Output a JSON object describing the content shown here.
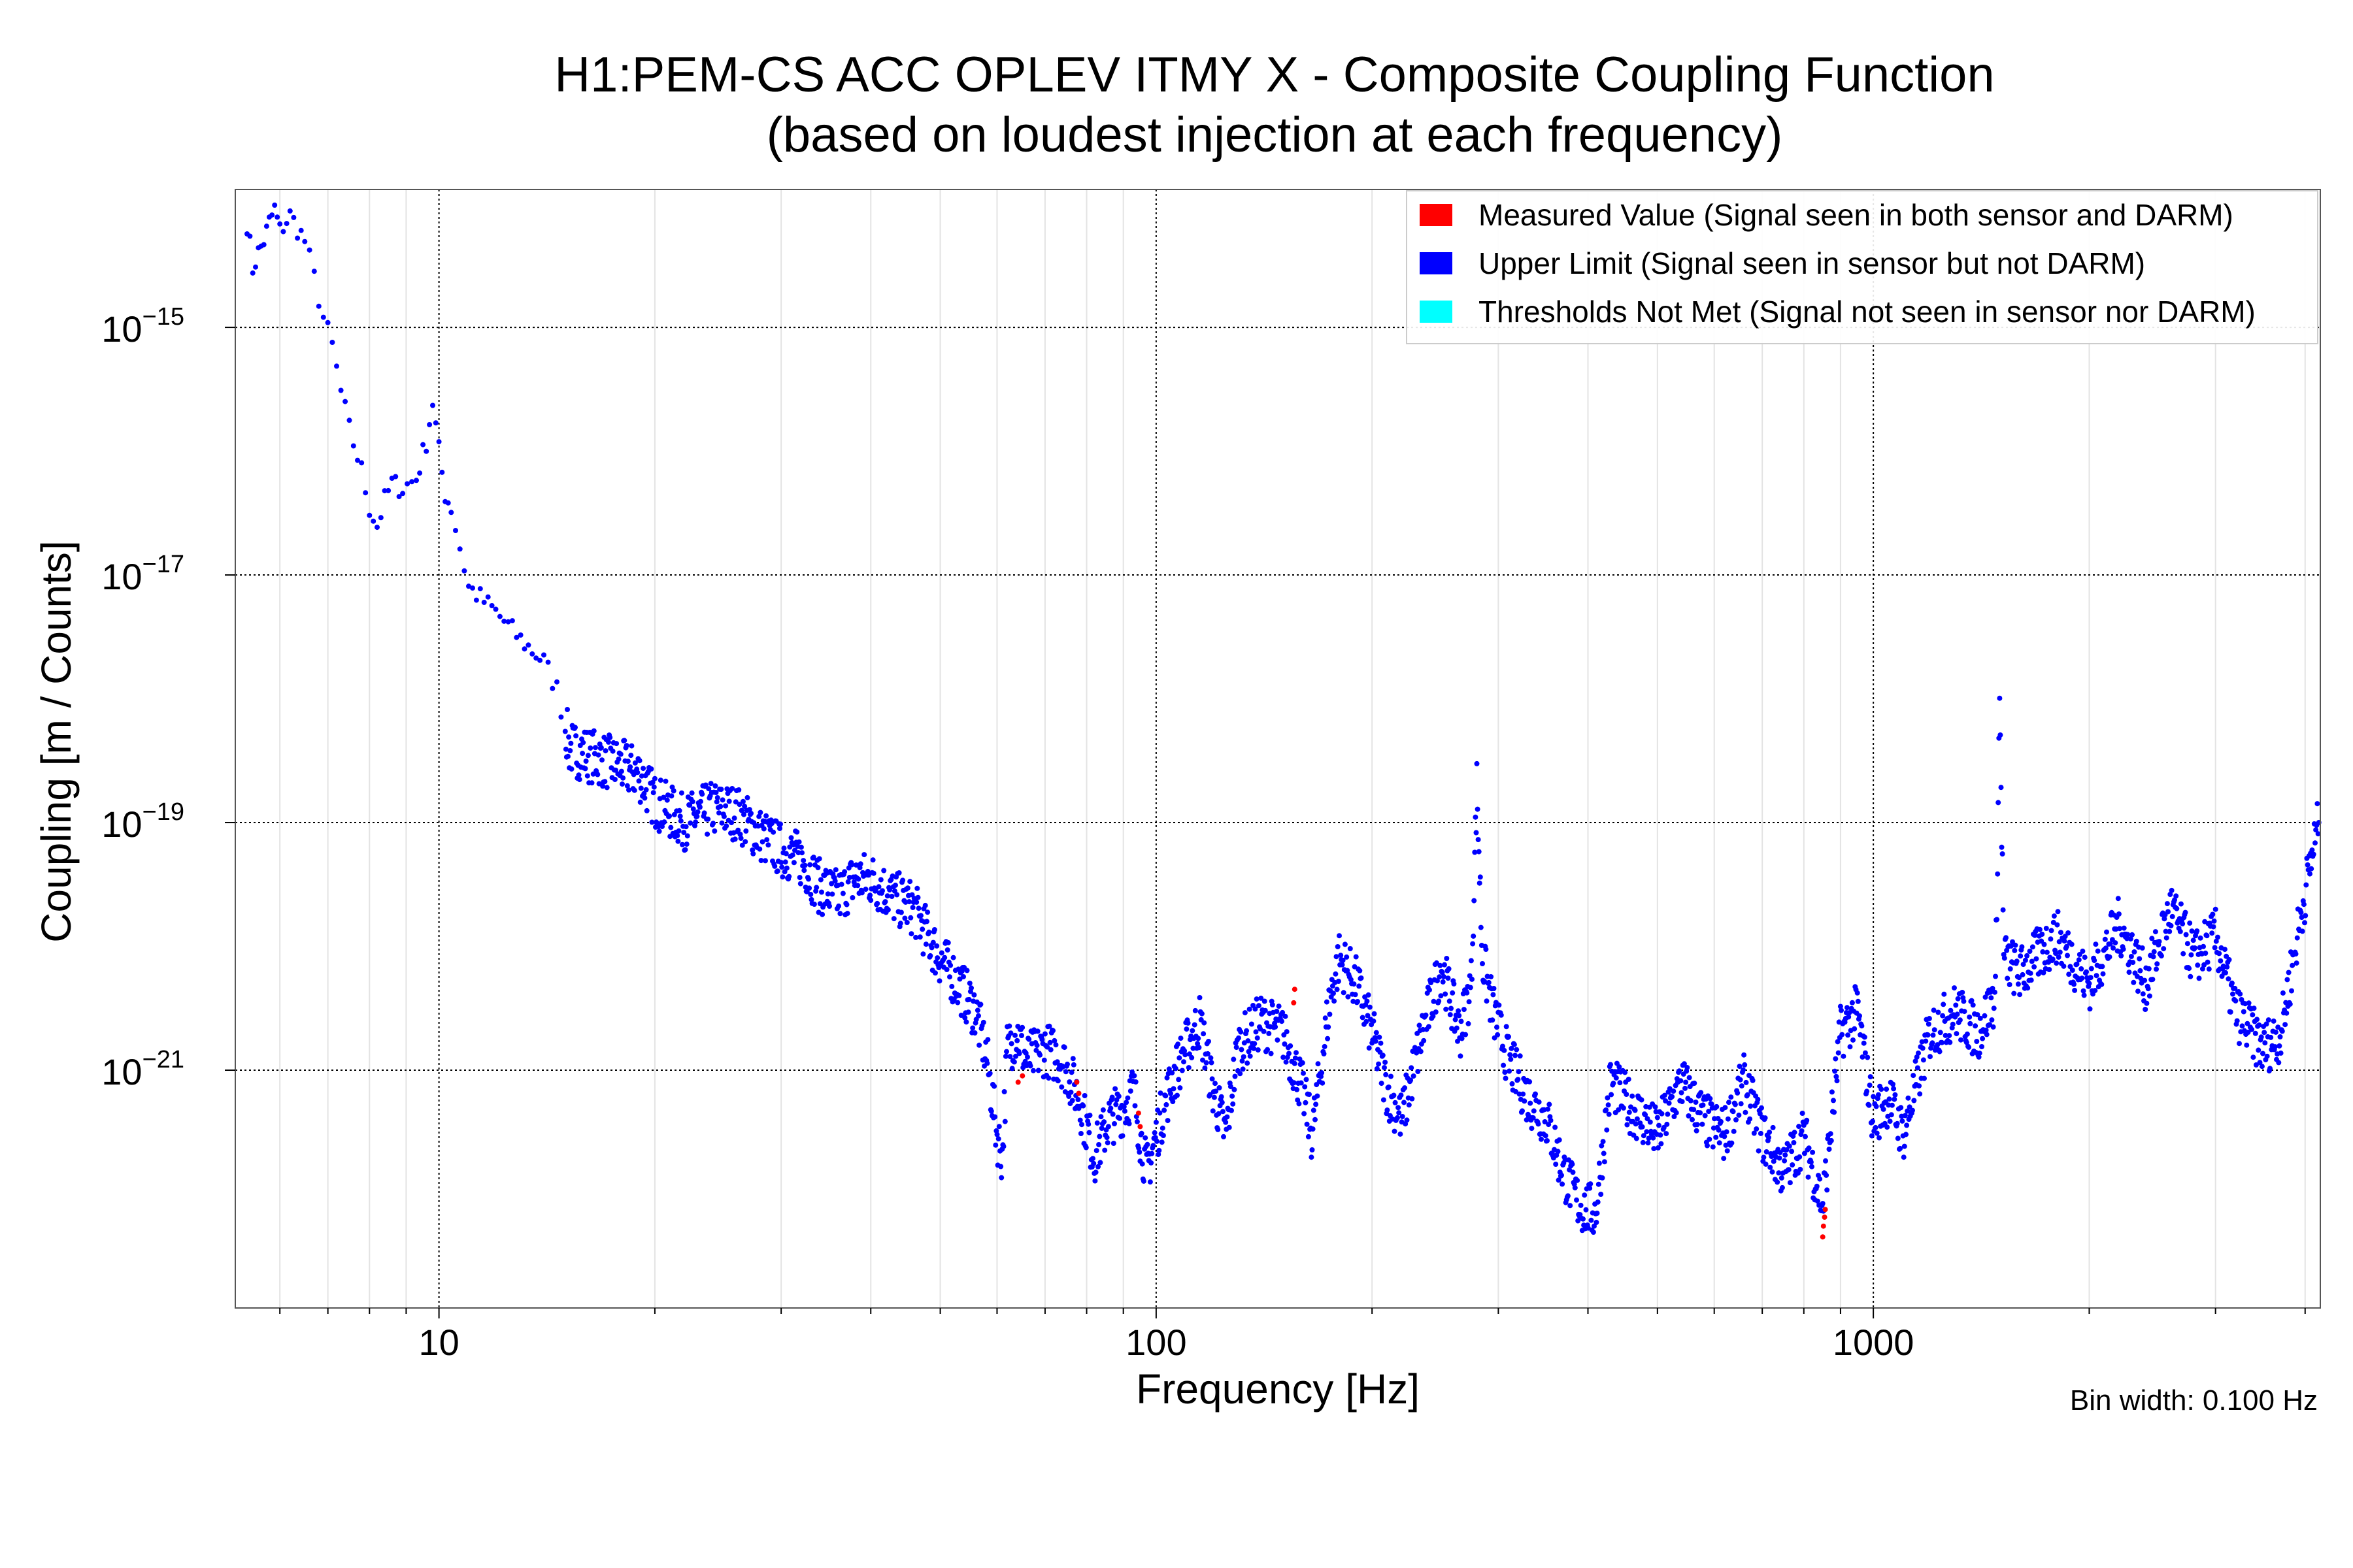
{
  "chart_data": {
    "type": "scatter",
    "title": "H1:PEM-CS ACC OPLEV ITMY X - Composite Coupling Function",
    "subtitle": "(based on loudest injection at each frequency)",
    "xlabel": "Frequency [Hz]",
    "ylabel": "Coupling [m / Counts]",
    "xscale": "log",
    "yscale": "log",
    "xlim": [
      5.2,
      4200
    ],
    "ylim": [
      1.2e-23,
      1.3e-14
    ],
    "x_ticks": [
      {
        "value": 10,
        "label": "10"
      },
      {
        "value": 100,
        "label": "100"
      },
      {
        "value": 1000,
        "label": "1000"
      }
    ],
    "y_ticks": [
      {
        "value": 1e-15,
        "base": "10",
        "exp": "−15"
      },
      {
        "value": 1e-17,
        "base": "10",
        "exp": "−17"
      },
      {
        "value": 1e-19,
        "base": "10",
        "exp": "−19"
      },
      {
        "value": 1e-21,
        "base": "10",
        "exp": "−21"
      }
    ],
    "grid": true,
    "legend_position": "top-right",
    "note": "Bin width: 0.100 Hz",
    "colors": {
      "measured": "#ff0000",
      "upper": "#0000ff",
      "thresholds": "#00ffff"
    },
    "series": [
      {
        "name": "Measured Value (Signal seen in both sensor and DARM)",
        "key": "measured",
        "color": "#ff0000",
        "points": [
          [
            64.2,
            8e-22
          ],
          [
            65.1,
            9e-22
          ],
          [
            77.5,
            8e-22
          ],
          [
            78.0,
            6.5e-22
          ],
          [
            94.5,
            4.5e-22
          ],
          [
            95.0,
            3.5e-22
          ],
          [
            155.5,
            3.5e-21
          ],
          [
            156.0,
            4.5e-21
          ],
          [
            850,
            4.5e-23
          ],
          [
            852,
            5.5e-23
          ],
          [
            855,
            6.5e-23
          ],
          [
            857,
            7.5e-23
          ]
        ]
      },
      {
        "name": "Upper Limit (Signal seen in sensor but not DARM)",
        "key": "upper",
        "color": "#0000ff",
        "anchors": [
          [
            5.4,
            7e-15
          ],
          [
            5.5,
            3e-15
          ],
          [
            5.6,
            4e-15
          ],
          [
            5.7,
            5e-15
          ],
          [
            5.8,
            7e-15
          ],
          [
            5.9,
            9e-15
          ],
          [
            6.0,
            6e-15
          ],
          [
            6.2,
            8e-15
          ],
          [
            6.5,
            5e-15
          ],
          [
            6.7,
            2.5e-15
          ],
          [
            6.9,
            1.2e-15
          ],
          [
            7.1,
            7e-16
          ],
          [
            7.3,
            3e-16
          ],
          [
            7.5,
            1.5e-16
          ],
          [
            7.8,
            7e-17
          ],
          [
            8.0,
            3.5e-17
          ],
          [
            8.2,
            2.5e-17
          ],
          [
            8.4,
            4e-17
          ],
          [
            8.6,
            5.5e-17
          ],
          [
            8.9,
            5e-17
          ],
          [
            9.3,
            6e-17
          ],
          [
            9.6,
            1.2e-16
          ],
          [
            9.8,
            2.5e-16
          ],
          [
            10.0,
            1e-16
          ],
          [
            10.2,
            4.5e-17
          ],
          [
            10.4,
            3.5e-17
          ],
          [
            11.0,
            8e-18
          ],
          [
            12.0,
            5e-18
          ],
          [
            13.0,
            3e-18
          ],
          [
            14.0,
            2e-18
          ],
          [
            14.6,
            1.2e-18
          ],
          [
            15.0,
            6e-19
          ],
          [
            15.2,
            4e-19
          ],
          [
            19.0,
            2.5e-19
          ],
          [
            20.0,
            1.5e-19
          ],
          [
            22.0,
            1e-19
          ],
          [
            24.0,
            1.3e-19
          ],
          [
            26.0,
            1.2e-19
          ],
          [
            28.0,
            8e-20
          ],
          [
            30.0,
            6e-20
          ],
          [
            32.0,
            5e-20
          ],
          [
            34.0,
            3e-20
          ],
          [
            36.0,
            2.5e-20
          ],
          [
            38.0,
            3.5e-20
          ],
          [
            40.0,
            3.5e-20
          ],
          [
            43.0,
            2.5e-20
          ],
          [
            46.0,
            2e-20
          ],
          [
            48.0,
            1.2e-20
          ],
          [
            50.0,
            8e-21
          ],
          [
            53.0,
            5e-21
          ],
          [
            56.0,
            3e-21
          ],
          [
            58.0,
            1.3e-21
          ],
          [
            60.0,
            3e-22
          ],
          [
            61.0,
            2e-22
          ],
          [
            62.0,
            1.5e-21
          ],
          [
            64.0,
            2e-21
          ],
          [
            66.0,
            1.2e-21
          ],
          [
            70.0,
            1.5e-21
          ],
          [
            74.0,
            1.2e-21
          ],
          [
            78.0,
            6e-22
          ],
          [
            82.0,
            2e-22
          ],
          [
            86.0,
            4e-22
          ],
          [
            90.0,
            5e-22
          ],
          [
            93.0,
            7e-22
          ],
          [
            95.0,
            3e-22
          ],
          [
            97.0,
            1.5e-22
          ],
          [
            100.0,
            3e-22
          ],
          [
            105.0,
            8e-22
          ],
          [
            110.0,
            1.5e-21
          ],
          [
            115.0,
            2.5e-21
          ],
          [
            120.0,
            7e-22
          ],
          [
            125.0,
            3e-22
          ],
          [
            130.0,
            1.5e-21
          ],
          [
            140.0,
            2.5e-21
          ],
          [
            150.0,
            2e-21
          ],
          [
            160.0,
            7e-22
          ],
          [
            165.0,
            3e-22
          ],
          [
            175.0,
            4e-21
          ],
          [
            180.0,
            8e-21
          ],
          [
            190.0,
            5e-21
          ],
          [
            200.0,
            2e-21
          ],
          [
            210.0,
            7e-22
          ],
          [
            220.0,
            4e-22
          ],
          [
            235.0,
            2e-21
          ],
          [
            250.0,
            7e-21
          ],
          [
            265.0,
            2e-21
          ],
          [
            275.0,
            5e-21
          ],
          [
            280.0,
            2e-19
          ],
          [
            285.0,
            8e-21
          ],
          [
            295.0,
            3e-21
          ],
          [
            310.0,
            1.2e-21
          ],
          [
            330.0,
            6e-22
          ],
          [
            350.0,
            4e-22
          ],
          [
            370.0,
            1.5e-22
          ],
          [
            390.0,
            8e-23
          ],
          [
            410.0,
            7e-23
          ],
          [
            430.0,
            8e-22
          ],
          [
            460.0,
            5e-22
          ],
          [
            500.0,
            3e-22
          ],
          [
            540.0,
            8e-22
          ],
          [
            580.0,
            4e-22
          ],
          [
            620.0,
            3e-22
          ],
          [
            660.0,
            8e-22
          ],
          [
            700.0,
            3e-22
          ],
          [
            750.0,
            1.5e-22
          ],
          [
            800.0,
            3e-22
          ],
          [
            850.0,
            8e-23
          ],
          [
            900.0,
            2e-21
          ],
          [
            950.0,
            3e-21
          ],
          [
            1000.0,
            4e-22
          ],
          [
            1050.0,
            6e-22
          ],
          [
            1100.0,
            3e-22
          ],
          [
            1150.0,
            8e-22
          ],
          [
            1200.0,
            2e-21
          ],
          [
            1300.0,
            3e-21
          ],
          [
            1400.0,
            2e-21
          ],
          [
            1480.0,
            4e-21
          ],
          [
            1500.0,
            1e-18
          ],
          [
            1520.0,
            8e-21
          ],
          [
            1600.0,
            6e-21
          ],
          [
            1800.0,
            1.2e-20
          ],
          [
            2000.0,
            5e-21
          ],
          [
            2200.0,
            1.5e-20
          ],
          [
            2400.0,
            5e-21
          ],
          [
            2600.0,
            2e-20
          ],
          [
            2800.0,
            8e-21
          ],
          [
            3000.0,
            1.2e-20
          ],
          [
            3200.0,
            3e-21
          ],
          [
            3500.0,
            1.5e-21
          ],
          [
            3700.0,
            2e-21
          ],
          [
            3900.0,
            1.2e-20
          ],
          [
            4100.0,
            6e-20
          ],
          [
            4180.0,
            1e-19
          ]
        ]
      },
      {
        "name": "Thresholds Not Met (Signal not seen in sensor nor DARM)",
        "key": "thresholds",
        "color": "#00ffff",
        "points": []
      }
    ]
  }
}
